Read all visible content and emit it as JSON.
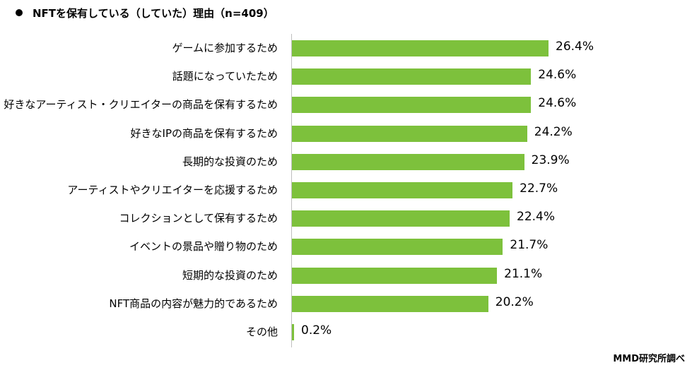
{
  "chart_data": {
    "type": "bar",
    "orientation": "horizontal",
    "title": "NFTを保有している（していた）理由（n=409）",
    "categories": [
      "ゲームに参加するため",
      "話題になっていたため",
      "好きなアーティスト・クリエイターの商品を保有するため",
      "好きなIPの商品を保有するため",
      "長期的な投資のため",
      "アーティストやクリエイターを応援するため",
      "コレクションとして保有するため",
      "イベントの景品や贈り物のため",
      "短期的な投資のため",
      "NFT商品の内容が魅力的であるため",
      "その他"
    ],
    "values": [
      26.4,
      24.6,
      24.6,
      24.2,
      23.9,
      22.7,
      22.4,
      21.7,
      21.1,
      20.2,
      0.2
    ],
    "value_labels": [
      "26.4%",
      "24.6%",
      "24.6%",
      "24.2%",
      "23.9%",
      "22.7%",
      "22.4%",
      "21.7%",
      "21.1%",
      "20.2%",
      "0.2%"
    ],
    "unit": "%",
    "xlim": [
      0,
      30
    ],
    "grid": false,
    "bar_color": "#7dc13c",
    "source": "MMD研究所調べ"
  }
}
